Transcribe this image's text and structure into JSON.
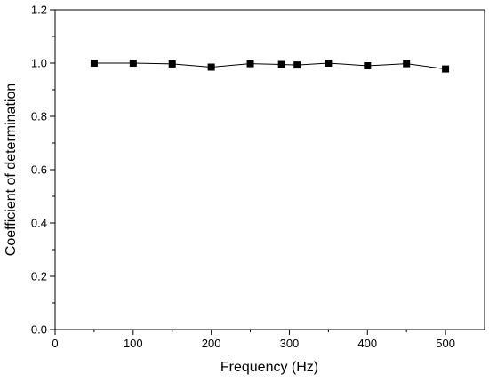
{
  "chart_data": {
    "type": "line",
    "xlabel": "Frequency (Hz)",
    "ylabel": "Coefficient of determination",
    "xlim": [
      0,
      550
    ],
    "ylim": [
      0.0,
      1.2
    ],
    "xticks": [
      "0",
      "100",
      "200",
      "300",
      "400",
      "500"
    ],
    "yticks": [
      "0.0",
      "0.2",
      "0.4",
      "0.6",
      "0.8",
      "1.0",
      "1.2"
    ],
    "grid": false,
    "legend": "none",
    "series": [
      {
        "marker": "square",
        "color": "#000000",
        "x": [
          50,
          100,
          150,
          200,
          250,
          290,
          310,
          350,
          400,
          450,
          500
        ],
        "y": [
          1.0,
          1.0,
          0.997,
          0.985,
          0.998,
          0.995,
          0.993,
          1.0,
          0.99,
          0.998,
          0.978
        ]
      }
    ]
  }
}
